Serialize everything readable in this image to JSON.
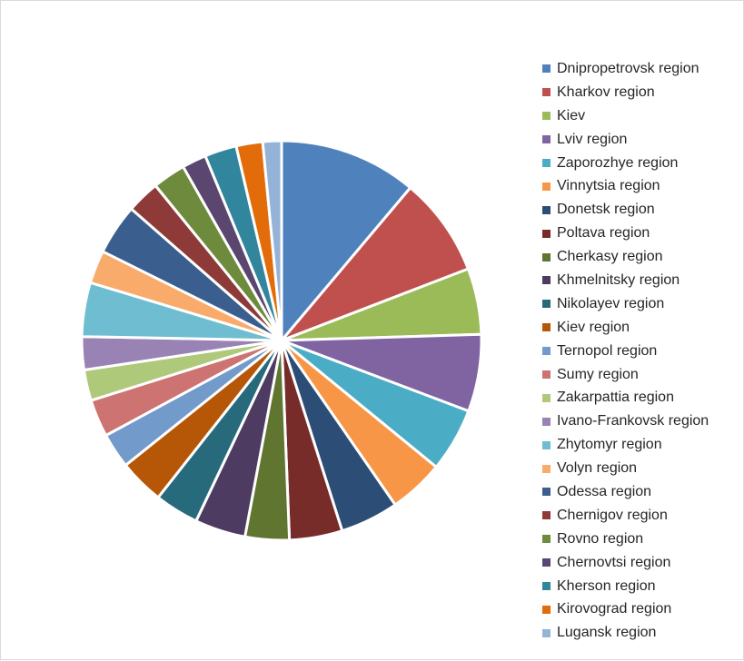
{
  "chart_data": {
    "type": "pie",
    "title": "",
    "legend_position": "right",
    "categories": [
      "Dnipropetrovsk region",
      "Kharkov region",
      "Kiev",
      "Lviv region",
      "Zaporozhye region",
      "Vinnytsia region",
      "Donetsk region",
      "Poltava region",
      "Cherkasy region",
      "Khmelnitsky region",
      "Nikolayev region",
      "Kiev region",
      "Ternopol region",
      "Sumy region",
      "Zakarpattia region",
      "Ivano-Frankovsk region",
      "Zhytomyr region",
      "Volyn region",
      "Odessa region",
      "Chernigov region",
      "Rovno region",
      "Chernovtsi region",
      "Kherson region",
      "Kirovograd region",
      "Lugansk region"
    ],
    "values": [
      12.5,
      9.0,
      6.0,
      7.0,
      5.8,
      5.0,
      5.3,
      4.8,
      4.0,
      4.6,
      4.0,
      4.1,
      3.2,
      3.4,
      2.8,
      3.0,
      4.9,
      3.0,
      4.6,
      3.0,
      3.0,
      2.2,
      2.9,
      2.4,
      1.7
    ],
    "colors": [
      "#4f81bd",
      "#c0504d",
      "#9bbb59",
      "#8064a2",
      "#4bacc6",
      "#f79646",
      "#2c4d75",
      "#772c2a",
      "#5f7530",
      "#4d3b62",
      "#276a7c",
      "#b65708",
      "#729aca",
      "#cd7371",
      "#afc97a",
      "#9983b5",
      "#6fbdd1",
      "#f9ab6b",
      "#3a5f8f",
      "#8e3a38",
      "#6e8b3d",
      "#5a466f",
      "#31859c",
      "#e26b0a",
      "#95b3d7"
    ]
  }
}
